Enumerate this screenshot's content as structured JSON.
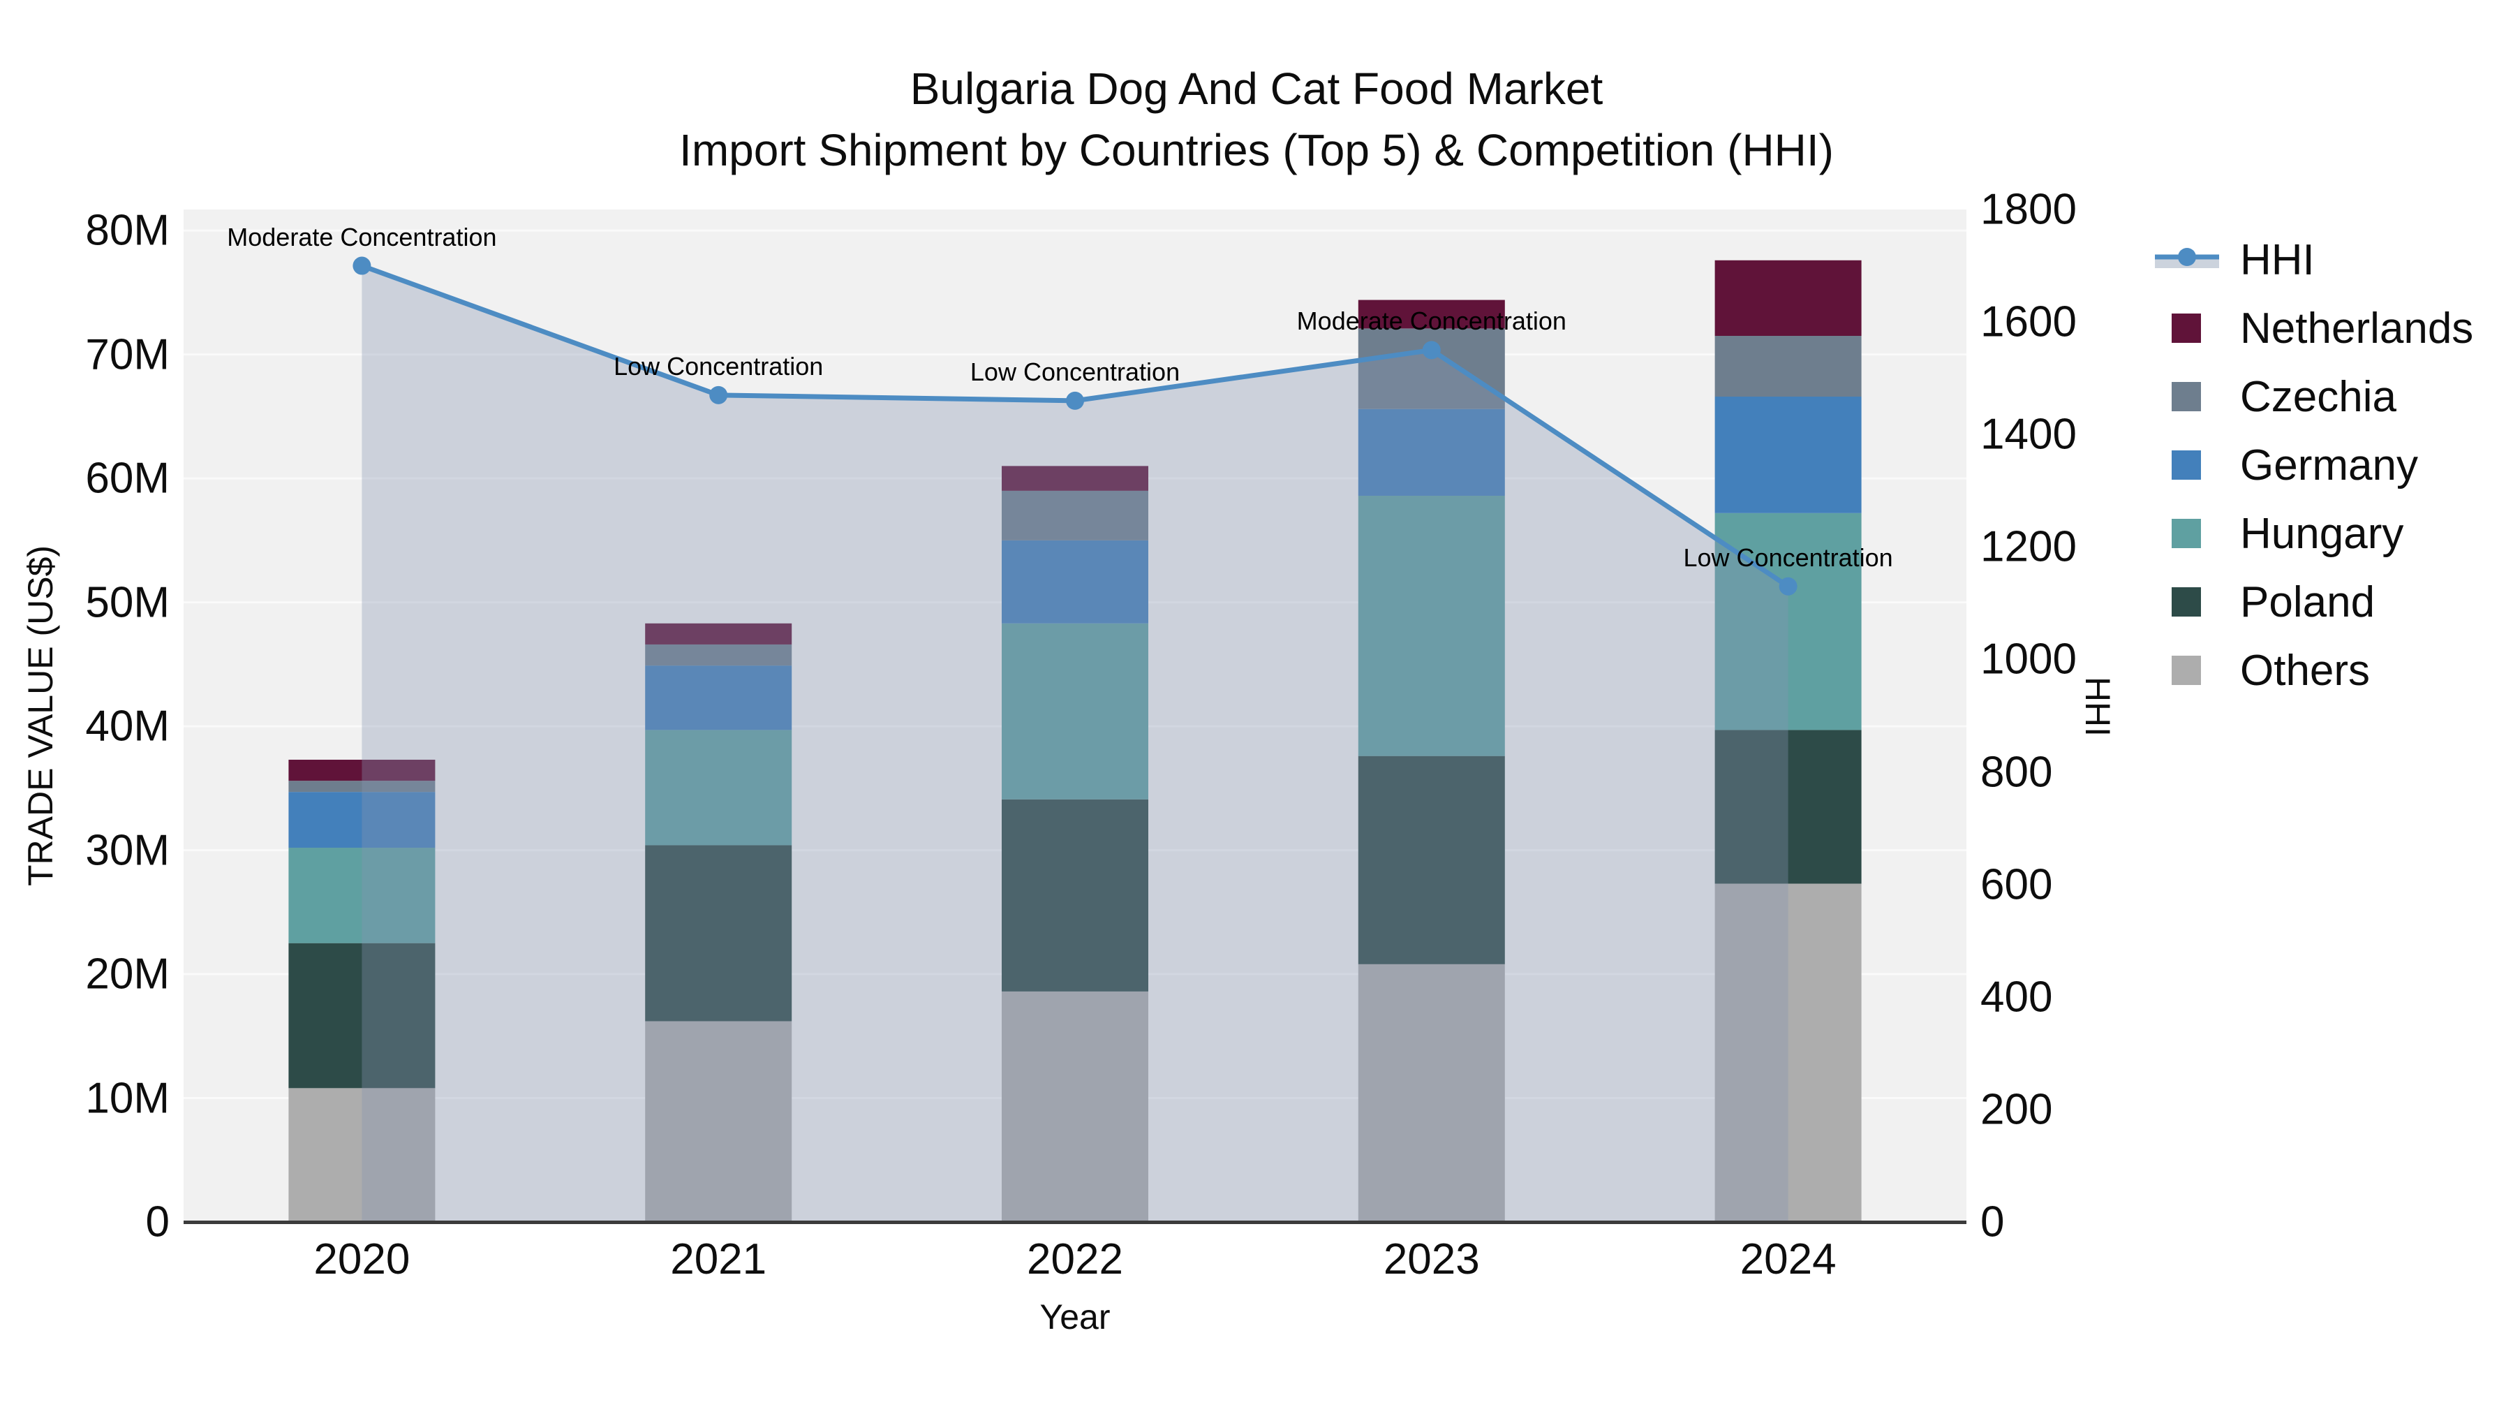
{
  "title": {
    "line1": "Bulgaria Dog And Cat Food Market",
    "line2": "Import Shipment by Countries (Top 5) & Competition (HHI)"
  },
  "chart_data": {
    "type": "bar+line",
    "title": "Bulgaria Dog And Cat Food Market Import Shipment by Countries (Top 5) & Competition (HHI)",
    "xlabel": "Year",
    "ylabel": "TRADE VALUE (US$)",
    "y2label": "HHI",
    "categories": [
      "2020",
      "2021",
      "2022",
      "2023",
      "2024"
    ],
    "values_unit": "million US$",
    "series": [
      {
        "name": "Others",
        "color": "#adadad",
        "values": [
          10.8,
          16.2,
          18.6,
          20.8,
          27.3
        ]
      },
      {
        "name": "Poland",
        "color": "#2d4b48",
        "values": [
          11.7,
          14.2,
          15.5,
          16.8,
          12.4
        ]
      },
      {
        "name": "Hungary",
        "color": "#5fa0a1",
        "values": [
          7.7,
          9.3,
          14.2,
          21.0,
          17.5
        ]
      },
      {
        "name": "Germany",
        "color": "#4380bb",
        "values": [
          4.5,
          5.2,
          6.7,
          7.0,
          9.4
        ]
      },
      {
        "name": "Czechia",
        "color": "#6e7e8e",
        "values": [
          0.9,
          1.7,
          4.0,
          6.5,
          4.9
        ]
      },
      {
        "name": "Netherlands",
        "color": "#601339",
        "values": [
          1.7,
          1.7,
          2.0,
          2.3,
          6.1
        ]
      }
    ],
    "line_series": {
      "name": "HHI",
      "color": "#4d8cc3",
      "fill_color": "rgba(136,150,179,0.35)",
      "values": [
        1700,
        1470,
        1460,
        1550,
        1130
      ]
    },
    "annotations": [
      {
        "x": "2020",
        "text": "Moderate Concentration"
      },
      {
        "x": "2021",
        "text": "Low Concentration"
      },
      {
        "x": "2022",
        "text": "Low Concentration"
      },
      {
        "x": "2023",
        "text": "Moderate Concentration"
      },
      {
        "x": "2024",
        "text": "Low Concentration"
      }
    ],
    "ylim": [
      0,
      81.7
    ],
    "y2lim": [
      0,
      1800
    ],
    "ytick_values": [
      0,
      10,
      20,
      30,
      40,
      50,
      60,
      70,
      80
    ],
    "ytick_labels": [
      "0",
      "10M",
      "20M",
      "30M",
      "40M",
      "50M",
      "60M",
      "70M",
      "80M"
    ],
    "y2tick_values": [
      0,
      200,
      400,
      600,
      800,
      1000,
      1200,
      1400,
      1600,
      1800
    ],
    "y2tick_labels": [
      "0",
      "200",
      "400",
      "600",
      "800",
      "1000",
      "1200",
      "1400",
      "1600",
      "1800"
    ],
    "grid": true,
    "legend_position": "right",
    "plot_bg": "#f1f1f1",
    "grid_color": "#fafafa"
  },
  "legend": {
    "items": [
      {
        "label": "HHI",
        "type": "line",
        "color": "#4d8cc3",
        "band_color": "#ccd3dd"
      },
      {
        "label": "Netherlands",
        "type": "swatch",
        "color": "#601339"
      },
      {
        "label": "Czechia",
        "type": "swatch",
        "color": "#6e7e8e"
      },
      {
        "label": "Germany",
        "type": "swatch",
        "color": "#4380bb"
      },
      {
        "label": "Hungary",
        "type": "swatch",
        "color": "#5fa0a1"
      },
      {
        "label": "Poland",
        "type": "swatch",
        "color": "#2d4b48"
      },
      {
        "label": "Others",
        "type": "swatch",
        "color": "#adadad"
      }
    ]
  }
}
